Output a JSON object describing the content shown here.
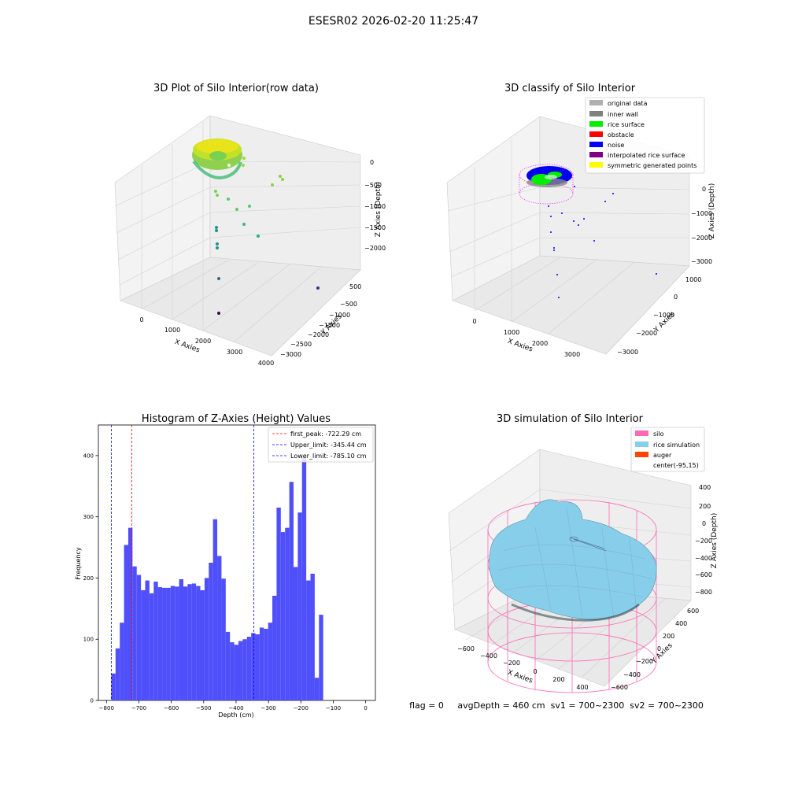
{
  "suptitle": "ESESR02 2026-02-20 11:25:47",
  "status_line": "flag = 0     avgDepth = 460 cm  sv1 = 700~2300  sv2 = 700~2300",
  "colors": {
    "hist_bar": "#4f4ffb",
    "first_peak_line": "#ff0000",
    "limit_line": "#0000ff",
    "silo": "#ff69b4",
    "rice": "#87ceeb",
    "auger": "#ff4500",
    "pane_light": "#f3f3f3",
    "pane_dark": "#e9e9e9"
  },
  "chart_data": [
    {
      "type": "scatter",
      "title": "3D Plot of Silo Interior(row data)",
      "projection": "3d",
      "xlabel": "X Axies",
      "ylabel": "Y Axies",
      "zlabel": "Z Axies (Depth)",
      "x_ticks": [
        "0",
        "1000",
        "2000",
        "3000",
        "4000"
      ],
      "y_ticks": [
        "500",
        "−500",
        "−1000",
        "−1500",
        "−2000",
        "−2500",
        "−3000"
      ],
      "z_ticks": [
        "0",
        "−500",
        "−1000",
        "−1500",
        "−2000"
      ],
      "colormap": "viridis"
    },
    {
      "type": "scatter",
      "title": "3D classify of Silo Interior",
      "projection": "3d",
      "xlabel": "X Axies",
      "ylabel": "Y Axies",
      "zlabel": "Z Axies (Depth)",
      "x_ticks": [
        "0",
        "1000",
        "2000",
        "3000"
      ],
      "y_ticks": [
        "1000",
        "0",
        "−1000",
        "−2000",
        "−3000"
      ],
      "z_ticks": [
        "0",
        "−1000",
        "−2000",
        "−3000"
      ],
      "legend_position": "top-right",
      "legend": [
        {
          "label": "original data",
          "color": "#b0b0b0"
        },
        {
          "label": "inner wall",
          "color": "#808080"
        },
        {
          "label": "rice surface",
          "color": "#00ee00"
        },
        {
          "label": "obstacle",
          "color": "#ff0000"
        },
        {
          "label": "noise",
          "color": "#0000ff"
        },
        {
          "label": "interpolated rice surface",
          "color": "#800080"
        },
        {
          "label": "symmetric generated points",
          "color": "#ffff00"
        }
      ]
    },
    {
      "type": "bar",
      "title": "Histogram of Z-Axies (Height) Values",
      "xlabel": "Depth (cm)",
      "ylabel": "Frequency",
      "xlim": [
        -825,
        30
      ],
      "ylim": [
        0,
        450
      ],
      "x_ticks": [
        -800,
        -700,
        -600,
        -500,
        -400,
        -300,
        -200,
        -100,
        0
      ],
      "y_ticks": [
        0,
        100,
        200,
        300,
        400
      ],
      "bin_start": -785.1,
      "bin_width": 13.08,
      "values": [
        44,
        85,
        127,
        254,
        282,
        219,
        205,
        180,
        196,
        175,
        194,
        185,
        184,
        184,
        187,
        186,
        198,
        186,
        190,
        191,
        187,
        180,
        200,
        225,
        296,
        236,
        199,
        112,
        95,
        91,
        97,
        100,
        104,
        110,
        108,
        119,
        117,
        127,
        171,
        315,
        275,
        282,
        357,
        218,
        307,
        398,
        196,
        207,
        37,
        140
      ],
      "grid": false,
      "legend_position": "top-right",
      "vlines": [
        {
          "label": "first_peak: -722.29 cm",
          "x": -722.29,
          "color": "#ff0000"
        },
        {
          "label": "Upper_limit: -345.44 cm",
          "x": -345.44,
          "color": "#0000ff"
        },
        {
          "label": "Lower_limit: -785.10 cm",
          "x": -785.1,
          "color": "#0000ff"
        }
      ]
    },
    {
      "type": "area",
      "title": "3D simulation of Silo Interior",
      "projection": "3d",
      "xlabel": "X Axies",
      "ylabel": "Y Axies",
      "zlabel": "Z Axies (Depth)",
      "x_ticks": [
        "−600",
        "−400",
        "−200",
        "0",
        "200",
        "400"
      ],
      "y_ticks": [
        "600",
        "400",
        "200",
        "0",
        "−200",
        "−400",
        "−600"
      ],
      "z_ticks": [
        "400",
        "200",
        "0",
        "−200",
        "−400",
        "−600",
        "−800"
      ],
      "legend_position": "top-right",
      "legend": [
        {
          "label": "silo",
          "color": "#ff69b4"
        },
        {
          "label": "rice simulation",
          "color": "#87ceeb"
        },
        {
          "label": "auger",
          "color": "#ff4500"
        },
        {
          "label": "center(-95,15)",
          "color": ""
        }
      ]
    }
  ]
}
